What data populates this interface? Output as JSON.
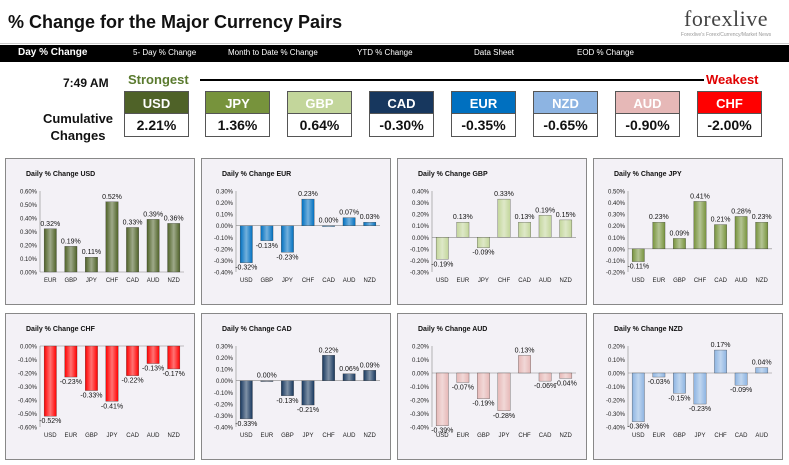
{
  "header": {
    "title": "% Change for the Major Currency Pairs",
    "logo": "forexlive",
    "logo_sub": "Forexlive's Forex/Currency/Market News"
  },
  "nav": [
    "Day % Change",
    "5- Day % Change",
    "Month to Date % Change",
    "YTD % Change",
    "Data Sheet",
    "EOD % Change"
  ],
  "summary": {
    "time": "7:49 AM",
    "strongest_label": "Strongest",
    "weakest_label": "Weakest",
    "cumulative_label": "Cumulative Changes",
    "currencies": [
      {
        "code": "USD",
        "change": "2.21%",
        "color": "#4f6228"
      },
      {
        "code": "JPY",
        "change": "1.36%",
        "color": "#77933c"
      },
      {
        "code": "GBP",
        "change": "0.64%",
        "color": "#c3d69b"
      },
      {
        "code": "CAD",
        "change": "-0.30%",
        "color": "#17375e"
      },
      {
        "code": "EUR",
        "change": "-0.35%",
        "color": "#0070c0"
      },
      {
        "code": "NZD",
        "change": "-0.65%",
        "color": "#8db4e2"
      },
      {
        "code": "AUD",
        "change": "-0.90%",
        "color": "#e6b8b7"
      },
      {
        "code": "CHF",
        "change": "-2.00%",
        "color": "#ff0000"
      }
    ]
  },
  "chart_data": [
    {
      "type": "bar",
      "title": "Daily % Change USD",
      "categories": [
        "EUR",
        "GBP",
        "JPY",
        "CHF",
        "CAD",
        "AUD",
        "NZD"
      ],
      "values": [
        0.32,
        0.19,
        0.11,
        0.52,
        0.33,
        0.39,
        0.36
      ],
      "labels": [
        "0.32%",
        "0.19%",
        "0.11%",
        "0.52%",
        "0.33%",
        "0.39%",
        "0.36%"
      ],
      "ylim": [
        0,
        0.6
      ],
      "ticks": [
        0.6,
        0.5,
        0.4,
        0.3,
        0.2,
        0.1,
        0.0
      ],
      "color": "#4f6228"
    },
    {
      "type": "bar",
      "title": "Daily % Change EUR",
      "categories": [
        "USD",
        "GBP",
        "JPY",
        "CHF",
        "CAD",
        "AUD",
        "NZD"
      ],
      "values": [
        -0.32,
        -0.13,
        -0.23,
        0.23,
        0.0,
        0.07,
        0.03
      ],
      "labels": [
        "-0.32%",
        "-0.13%",
        "-0.23%",
        "0.23%",
        "0.00%",
        "0.07%",
        "0.03%"
      ],
      "ylim": [
        -0.4,
        0.3
      ],
      "ticks": [
        0.3,
        0.2,
        0.1,
        0.0,
        -0.1,
        -0.2,
        -0.3,
        -0.4
      ],
      "color": "#0070c0"
    },
    {
      "type": "bar",
      "title": "Daily % Change GBP",
      "categories": [
        "USD",
        "EUR",
        "JPY",
        "CHF",
        "CAD",
        "AUD",
        "NZD"
      ],
      "values": [
        -0.19,
        0.13,
        -0.09,
        0.33,
        0.13,
        0.19,
        0.15
      ],
      "labels": [
        "-0.19%",
        "0.13%",
        "-0.09%",
        "0.33%",
        "0.13%",
        "0.19%",
        "0.15%"
      ],
      "ylim": [
        -0.3,
        0.4
      ],
      "ticks": [
        0.4,
        0.3,
        0.2,
        0.1,
        0.0,
        -0.1,
        -0.2,
        -0.3
      ],
      "color": "#c3d69b"
    },
    {
      "type": "bar",
      "title": "Daily % Change JPY",
      "categories": [
        "USD",
        "EUR",
        "GBP",
        "CHF",
        "CAD",
        "AUD",
        "NZD"
      ],
      "values": [
        -0.11,
        0.23,
        0.09,
        0.41,
        0.21,
        0.28,
        0.23
      ],
      "labels": [
        "-0.11%",
        "0.23%",
        "0.09%",
        "0.41%",
        "0.21%",
        "0.28%",
        "0.23%"
      ],
      "ylim": [
        -0.2,
        0.5
      ],
      "ticks": [
        0.5,
        0.4,
        0.3,
        0.2,
        0.1,
        0.0,
        -0.1,
        -0.2
      ],
      "color": "#77933c"
    },
    {
      "type": "bar",
      "title": "Daily % Change CHF",
      "categories": [
        "USD",
        "EUR",
        "GBP",
        "JPY",
        "CAD",
        "AUD",
        "NZD"
      ],
      "values": [
        -0.52,
        -0.23,
        -0.33,
        -0.41,
        -0.22,
        -0.13,
        -0.17
      ],
      "labels": [
        "-0.52%",
        "-0.23%",
        "-0.33%",
        "-0.41%",
        "-0.22%",
        "-0.13%",
        "-0.17%"
      ],
      "ylim": [
        -0.6,
        0.0
      ],
      "ticks": [
        0.0,
        -0.1,
        -0.2,
        -0.3,
        -0.4,
        -0.5,
        -0.6
      ],
      "color": "#ff0000"
    },
    {
      "type": "bar",
      "title": "Daily % Change CAD",
      "categories": [
        "USD",
        "EUR",
        "GBP",
        "JPY",
        "CHF",
        "AUD",
        "NZD"
      ],
      "values": [
        -0.33,
        0.0,
        -0.13,
        -0.21,
        0.22,
        0.06,
        0.09
      ],
      "labels": [
        "-0.33%",
        "0.00%",
        "-0.13%",
        "-0.21%",
        "0.22%",
        "0.06%",
        "0.09%"
      ],
      "ylim": [
        -0.4,
        0.3
      ],
      "ticks": [
        0.3,
        0.2,
        0.1,
        0.0,
        -0.1,
        -0.2,
        -0.3,
        -0.4
      ],
      "color": "#17375e"
    },
    {
      "type": "bar",
      "title": "Daily % Change AUD",
      "categories": [
        "USD",
        "EUR",
        "GBP",
        "JPY",
        "CHF",
        "CAD",
        "NZD"
      ],
      "values": [
        -0.39,
        -0.07,
        -0.19,
        -0.28,
        0.13,
        -0.06,
        -0.04
      ],
      "labels": [
        "-0.39%",
        "-0.07%",
        "-0.19%",
        "-0.28%",
        "0.13%",
        "-0.06%",
        "-0.04%"
      ],
      "ylim": [
        -0.4,
        0.2
      ],
      "ticks": [
        0.2,
        0.1,
        0.0,
        -0.1,
        -0.2,
        -0.3,
        -0.4
      ],
      "color": "#e6b8b7"
    },
    {
      "type": "bar",
      "title": "Daily % Change NZD",
      "categories": [
        "USD",
        "EUR",
        "GBP",
        "JPY",
        "CHF",
        "CAD",
        "AUD"
      ],
      "values": [
        -0.36,
        -0.03,
        -0.15,
        -0.23,
        0.17,
        -0.09,
        0.04
      ],
      "labels": [
        "-0.36%",
        "-0.03%",
        "-0.15%",
        "-0.23%",
        "0.17%",
        "-0.09%",
        "0.04%"
      ],
      "ylim": [
        -0.4,
        0.2
      ],
      "ticks": [
        0.2,
        0.1,
        0.0,
        -0.1,
        -0.2,
        -0.3,
        -0.4
      ],
      "color": "#8db4e2"
    }
  ]
}
